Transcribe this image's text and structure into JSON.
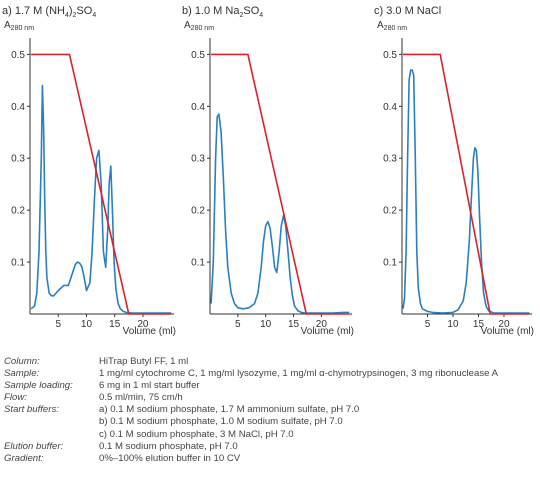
{
  "chart_data": [
    {
      "type": "line",
      "title_prefix": "a) 1.7 M (NH",
      "title_sub1": "4",
      "title_mid": ")",
      "title_sub2": "2",
      "title_suffix": "SO",
      "title_sub3": "4",
      "ylabel": "A",
      "ylabel_sub": "280 nm",
      "xlabel": "Volume (ml)",
      "xlim": [
        0,
        25.5
      ],
      "ylim": [
        0,
        0.52
      ],
      "xticks": [
        "5",
        "10",
        "15",
        "20"
      ],
      "yticks": [
        "0.1",
        "0.2",
        "0.3",
        "0.4",
        "0.5"
      ],
      "series": [
        {
          "color": "#2a7fc0",
          "x": [
            0.2,
            0.8,
            1.2,
            1.6,
            2.0,
            2.2,
            2.4,
            2.6,
            2.8,
            3.0,
            3.4,
            3.8,
            4.2,
            5.0,
            6.0,
            6.8,
            7.4,
            8.0,
            8.4,
            8.8,
            9.2,
            9.6,
            10.0,
            10.6,
            11.0,
            11.4,
            11.8,
            12.2,
            12.6,
            13.0,
            13.4,
            13.8,
            14.0,
            14.3,
            14.6,
            14.9,
            15.2,
            15.6,
            16.0,
            16.5,
            17.0,
            18.0,
            20.0,
            22.0,
            24.0,
            25.0
          ],
          "y": [
            0.01,
            0.015,
            0.04,
            0.12,
            0.3,
            0.44,
            0.36,
            0.22,
            0.12,
            0.07,
            0.04,
            0.035,
            0.035,
            0.045,
            0.055,
            0.055,
            0.075,
            0.095,
            0.1,
            0.098,
            0.09,
            0.07,
            0.045,
            0.06,
            0.12,
            0.22,
            0.3,
            0.315,
            0.25,
            0.12,
            0.09,
            0.17,
            0.25,
            0.285,
            0.2,
            0.1,
            0.05,
            0.02,
            0.01,
            0.005,
            0.003,
            0.002,
            0.002,
            0.002,
            0.002,
            0.002
          ]
        },
        {
          "color": "#d8232a",
          "x": [
            0.2,
            7.0,
            17.5,
            25.0
          ],
          "y": [
            0.5,
            0.5,
            0.0,
            0.0
          ]
        }
      ]
    },
    {
      "type": "line",
      "title_prefix": "b) 1.0 M Na",
      "title_sub1": "2",
      "title_suffix": "SO",
      "title_sub2": "4",
      "ylabel": "A",
      "ylabel_sub": "280 nm",
      "xlabel": "Volume (ml)",
      "xlim": [
        0,
        25.5
      ],
      "ylim": [
        0,
        0.52
      ],
      "xticks": [
        "5",
        "10",
        "15",
        "20"
      ],
      "yticks": [
        "0.1",
        "0.2",
        "0.3",
        "0.4",
        "0.5"
      ],
      "series": [
        {
          "color": "#2a7fc0",
          "x": [
            0.2,
            0.6,
            1.0,
            1.3,
            1.6,
            2.0,
            2.4,
            2.8,
            3.2,
            3.8,
            4.4,
            5.0,
            6.0,
            7.0,
            8.0,
            8.6,
            9.2,
            9.6,
            10.0,
            10.4,
            10.8,
            11.2,
            11.6,
            12.0,
            12.4,
            12.8,
            13.2,
            13.6,
            14.0,
            14.4,
            14.8,
            15.2,
            15.8,
            16.4,
            17.0,
            18.0,
            20.0,
            22.0,
            24.0,
            25.0
          ],
          "y": [
            0.02,
            0.1,
            0.3,
            0.38,
            0.385,
            0.35,
            0.26,
            0.16,
            0.09,
            0.04,
            0.02,
            0.012,
            0.01,
            0.012,
            0.02,
            0.04,
            0.09,
            0.14,
            0.17,
            0.178,
            0.165,
            0.13,
            0.09,
            0.08,
            0.12,
            0.17,
            0.19,
            0.17,
            0.12,
            0.07,
            0.035,
            0.015,
            0.006,
            0.003,
            0.002,
            0.002,
            0.002,
            0.002,
            0.003,
            0.003
          ]
        },
        {
          "color": "#d8232a",
          "x": [
            0.2,
            6.8,
            17.3,
            25.0
          ],
          "y": [
            0.5,
            0.5,
            0.0,
            0.0
          ]
        }
      ]
    },
    {
      "type": "line",
      "title_prefix": "c) 3.0 M NaCl",
      "ylabel": "A",
      "ylabel_sub": "280 nm",
      "xlabel": "Volume (ml)",
      "xlim": [
        0,
        25.5
      ],
      "ylim": [
        0,
        0.52
      ],
      "xticks": [
        "5",
        "10",
        "15",
        "20"
      ],
      "yticks": [
        "0.1",
        "0.2",
        "0.3",
        "0.4",
        "0.5"
      ],
      "series": [
        {
          "color": "#2a7fc0",
          "x": [
            0.2,
            0.5,
            0.8,
            1.1,
            1.4,
            1.7,
            2.0,
            2.3,
            2.6,
            2.9,
            3.2,
            3.6,
            4.0,
            5.0,
            6.0,
            8.0,
            10.0,
            11.0,
            12.0,
            12.6,
            13.2,
            13.6,
            14.0,
            14.3,
            14.6,
            14.9,
            15.2,
            15.6,
            16.0,
            16.5,
            17.0,
            18.0,
            20.0,
            22.0,
            24.0,
            25.0
          ],
          "y": [
            0.01,
            0.03,
            0.12,
            0.3,
            0.45,
            0.47,
            0.47,
            0.46,
            0.3,
            0.12,
            0.05,
            0.02,
            0.01,
            0.005,
            0.003,
            0.002,
            0.003,
            0.008,
            0.025,
            0.06,
            0.14,
            0.22,
            0.3,
            0.32,
            0.315,
            0.27,
            0.19,
            0.1,
            0.04,
            0.015,
            0.006,
            0.002,
            0.002,
            0.002,
            0.002,
            0.002
          ]
        },
        {
          "color": "#d8232a",
          "x": [
            0.2,
            7.5,
            17.3,
            25.0
          ],
          "y": [
            0.5,
            0.5,
            0.0,
            0.0
          ]
        }
      ]
    }
  ],
  "conditions": [
    {
      "label": "Column:",
      "lines": [
        "HiTrap Butyl FF, 1 ml"
      ]
    },
    {
      "label": "Sample:",
      "lines": [
        "1 mg/ml cytochrome C, 1 mg/ml lysozyme, 1 mg/ml α-chymotrypsinogen, 3 mg ribonuclease A"
      ]
    },
    {
      "label": "Sample loading:",
      "lines": [
        "6 mg in 1 ml start buffer"
      ]
    },
    {
      "label": "Flow:",
      "lines": [
        "0.5 ml/min, 75 cm/h"
      ]
    },
    {
      "label": "Start buffers:",
      "lines": [
        "a) 0.1 M sodium phosphate, 1.7 M ammonium sulfate, pH 7.0",
        "b) 0.1 M sodium phosphate, 1.0 M sodium sulfate, pH 7.0",
        "c) 0.1 M sodium phosphate, 3 M NaCl, pH 7.0"
      ]
    },
    {
      "label": "Elution buffer:",
      "lines": [
        "0.1 M sodium phosphate, pH 7.0"
      ]
    },
    {
      "label": "Gradient:",
      "lines": [
        "0%–100% elution buffer in 10 CV"
      ]
    }
  ]
}
